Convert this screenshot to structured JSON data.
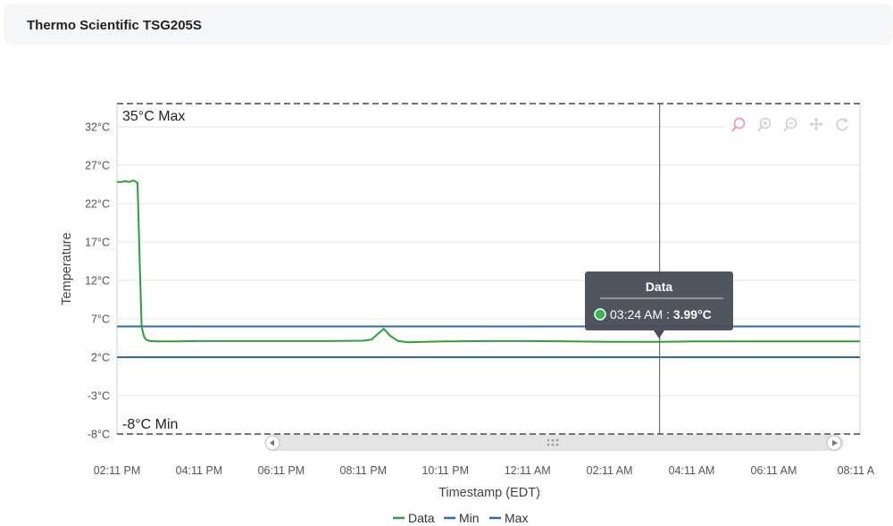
{
  "header": {
    "title": "Thermo Scientific TSG205S"
  },
  "chart_data": {
    "type": "line",
    "ylabel": "Temperature",
    "xlabel": "Timestamp (EDT)",
    "y_ticks": [
      "32°C",
      "27°C",
      "22°C",
      "17°C",
      "12°C",
      "7°C",
      "2°C",
      "-3°C",
      "-8°C"
    ],
    "y_tick_values": [
      32,
      27,
      22,
      17,
      12,
      7,
      2,
      -3,
      -8
    ],
    "ylim": [
      -8,
      35
    ],
    "x_ticks": [
      "02:11 PM",
      "04:11 PM",
      "06:11 PM",
      "08:11 PM",
      "10:11 PM",
      "12:11 AM",
      "02:11 AM",
      "04:11 AM",
      "06:11 AM",
      "08:11 A"
    ],
    "x_tick_hours": [
      0,
      2,
      4,
      6,
      8,
      10,
      12,
      14,
      16,
      18
    ],
    "xlim_hours": [
      0,
      18.1
    ],
    "max_band": {
      "label": "35°C Max",
      "value": 35
    },
    "min_band": {
      "label": "-8°C Min",
      "value": -8
    },
    "series": [
      {
        "name": "Data",
        "color": "#2e9e3e",
        "x_hours": [
          0,
          0.1,
          0.2,
          0.3,
          0.4,
          0.5,
          0.55,
          0.6,
          0.65,
          0.7,
          0.8,
          1.0,
          1.5,
          2.0,
          3.0,
          4.0,
          5.0,
          6.0,
          6.2,
          6.35,
          6.5,
          6.65,
          6.85,
          7.1,
          7.5,
          8.0,
          9.0,
          10.0,
          11.0,
          12.0,
          13.0,
          13.22,
          14.0,
          15.0,
          16.0,
          17.0,
          18.1
        ],
        "values": [
          24.8,
          24.8,
          24.9,
          24.8,
          25.0,
          24.7,
          15.0,
          6.0,
          4.8,
          4.3,
          4.1,
          4.05,
          4.05,
          4.1,
          4.1,
          4.1,
          4.1,
          4.15,
          4.3,
          5.0,
          5.7,
          4.8,
          4.1,
          3.95,
          4.0,
          4.05,
          4.1,
          4.1,
          4.05,
          4.0,
          4.0,
          3.99,
          4.05,
          4.05,
          4.05,
          4.05,
          4.05
        ]
      },
      {
        "name": "Min",
        "color": "#2f6ca3",
        "x_hours": [
          0,
          18.1
        ],
        "values": [
          2,
          2
        ]
      },
      {
        "name": "Max",
        "color": "#2f6ca3",
        "x_hours": [
          0,
          18.1
        ],
        "values": [
          6,
          6
        ]
      }
    ],
    "legend": [
      "Data",
      "Min",
      "Max"
    ],
    "legend_position": "bottom-center",
    "grid": true,
    "crosshair_hour": 13.22,
    "tooltip": {
      "title": "Data",
      "time": "03:24 AM",
      "separator": " : ",
      "value": "3.99°C"
    },
    "toolbar_icons": [
      "selection-zoom-icon",
      "zoom-in-icon",
      "zoom-out-icon",
      "pan-icon",
      "reset-icon"
    ]
  }
}
